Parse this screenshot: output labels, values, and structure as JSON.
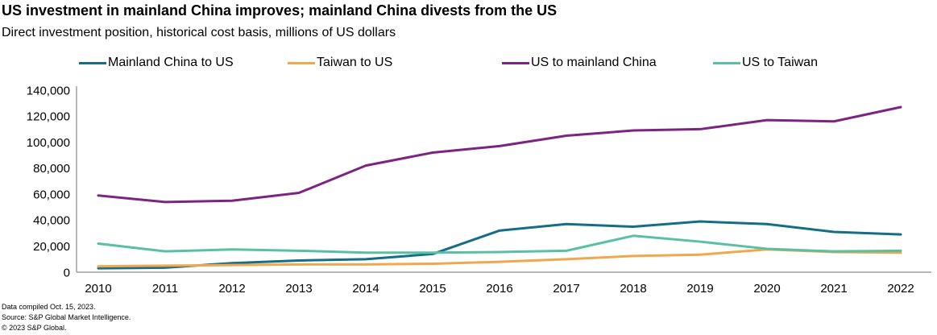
{
  "header": {
    "title": "US investment in mainland China improves; mainland China divests from the US",
    "subtitle": "Direct investment position, historical cost basis, millions of US dollars"
  },
  "footer": {
    "lines": [
      "Data compiled Oct. 15, 2023.",
      "Source: S&P Global Market Intelligence.",
      "© 2023 S&P Global."
    ]
  },
  "colors": {
    "axis": "#a0a0a0",
    "text": "#000000",
    "background": "#ffffff"
  },
  "chart_data": {
    "type": "line",
    "x": [
      2010,
      2011,
      2012,
      2013,
      2014,
      2015,
      2016,
      2017,
      2018,
      2019,
      2020,
      2021,
      2022
    ],
    "series": [
      {
        "name": "Mainland China to US",
        "color": "#156e85",
        "values": [
          3000,
          3500,
          7000,
          9000,
          10000,
          14000,
          32000,
          37000,
          35000,
          39000,
          37000,
          31000,
          29000
        ]
      },
      {
        "name": "Taiwan to US",
        "color": "#f0a74d",
        "values": [
          4500,
          5000,
          5500,
          6000,
          6000,
          6500,
          8000,
          10000,
          12500,
          13500,
          17500,
          15500,
          15000
        ]
      },
      {
        "name": "US to mainland China",
        "color": "#7d2482",
        "values": [
          59000,
          54000,
          55000,
          61000,
          82000,
          92000,
          97000,
          105000,
          109000,
          110000,
          117000,
          116000,
          127000
        ]
      },
      {
        "name": "US to Taiwan",
        "color": "#5ac0a4",
        "values": [
          22000,
          16000,
          17500,
          16500,
          15000,
          15000,
          15500,
          16500,
          28000,
          23500,
          18000,
          16000,
          16500
        ]
      }
    ],
    "title": "US investment in mainland China improves; mainland China divests from the US",
    "xlabel": "",
    "ylabel": "",
    "ylim": [
      0,
      140000
    ],
    "ytick_step": 20000,
    "grid": false,
    "legend_position": "top",
    "markers": false
  }
}
